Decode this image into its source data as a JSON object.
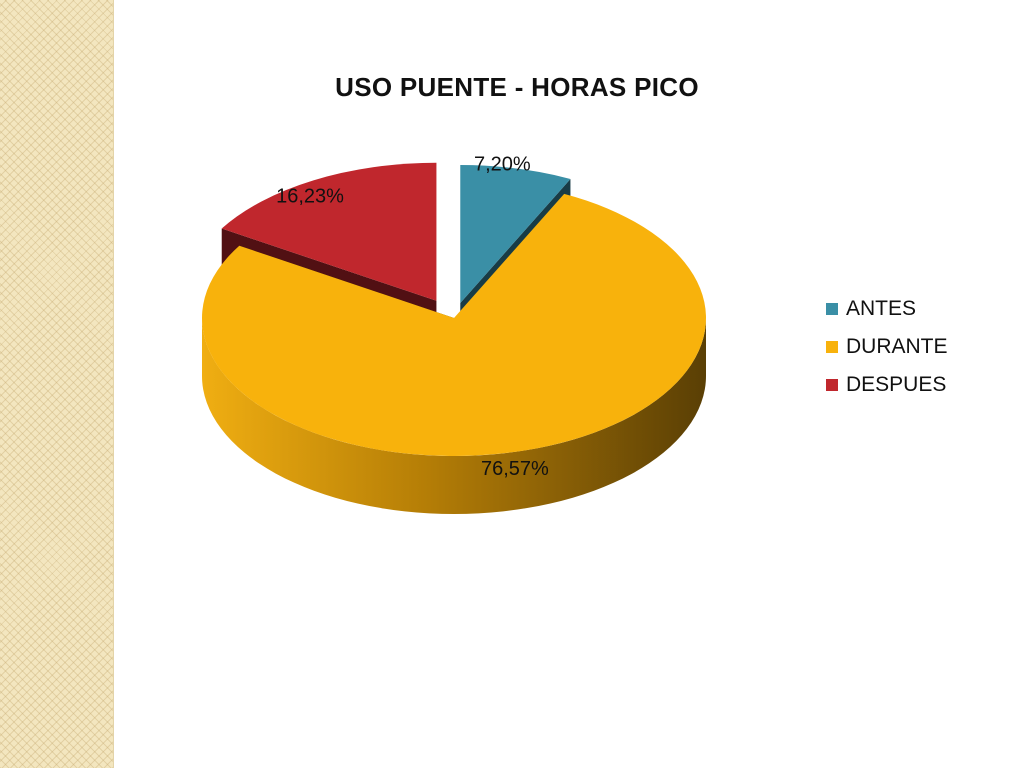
{
  "chart_data": {
    "type": "pie",
    "title": "USO PUENTE - HORAS PICO",
    "categories": [
      "ANTES",
      "DURANTE",
      "DESPUES"
    ],
    "values": [
      7.2,
      76.57,
      16.23
    ],
    "data_labels": [
      "7,20%",
      "76,57%",
      "16,23%"
    ],
    "colors": [
      "#3a8fa6",
      "#f8b20c",
      "#c0272d"
    ],
    "exploded": true,
    "three_d": true,
    "legend_position": "right"
  }
}
